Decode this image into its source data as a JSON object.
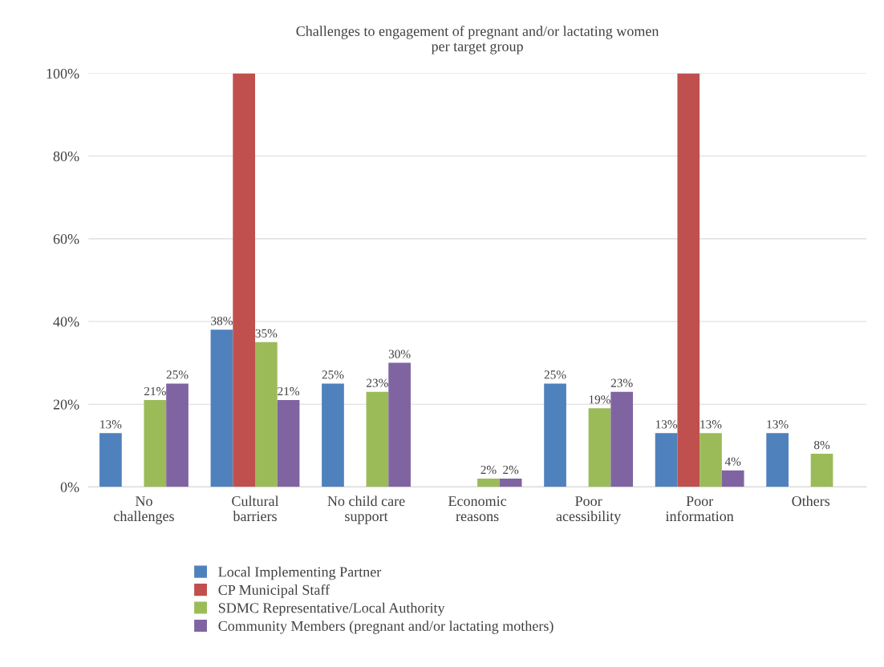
{
  "chart_data": {
    "type": "bar",
    "title": "Challenges to engagement of pregnant and/or lactating women\nper target group",
    "categories": [
      "No\nchallenges",
      "Cultural\nbarriers",
      "No child care\nsupport",
      "Economic\nreasons",
      "Poor\nacessibility",
      "Poor\ninformation",
      "Others"
    ],
    "series": [
      {
        "name": "Local Implementing Partner",
        "color": "#4f81bd",
        "values": [
          13,
          38,
          25,
          null,
          25,
          13,
          13
        ],
        "value_labels": [
          "13%",
          "38%",
          "25%",
          null,
          "25%",
          "13%",
          "13%"
        ]
      },
      {
        "name": "CP Municipal Staff",
        "color": "#c0504d",
        "values": [
          null,
          100,
          null,
          null,
          null,
          100,
          null
        ],
        "value_labels": [
          null,
          null,
          null,
          null,
          null,
          null,
          null
        ]
      },
      {
        "name": "SDMC Representative/Local Authority",
        "color": "#9bbb59",
        "values": [
          21,
          35,
          23,
          2,
          19,
          13,
          8
        ],
        "value_labels": [
          "21%",
          "35%",
          "23%",
          "2%",
          "19%",
          "13%",
          "8%"
        ]
      },
      {
        "name": "Community Members (pregnant and/or lactating mothers)",
        "color": "#8064a2",
        "values": [
          25,
          21,
          30,
          2,
          23,
          4,
          null
        ],
        "value_labels": [
          "25%",
          "21%",
          "30%",
          "2%",
          "23%",
          "4%",
          null
        ]
      }
    ],
    "ylim": [
      0,
      100
    ],
    "yticks": [
      {
        "value": 0,
        "label": "0%"
      },
      {
        "value": 20,
        "label": "20%"
      },
      {
        "value": 40,
        "label": "40%"
      },
      {
        "value": 60,
        "label": "60%"
      },
      {
        "value": 80,
        "label": "80%"
      },
      {
        "value": 100,
        "label": "100%"
      }
    ],
    "grid": "y",
    "legend": "bottom"
  }
}
